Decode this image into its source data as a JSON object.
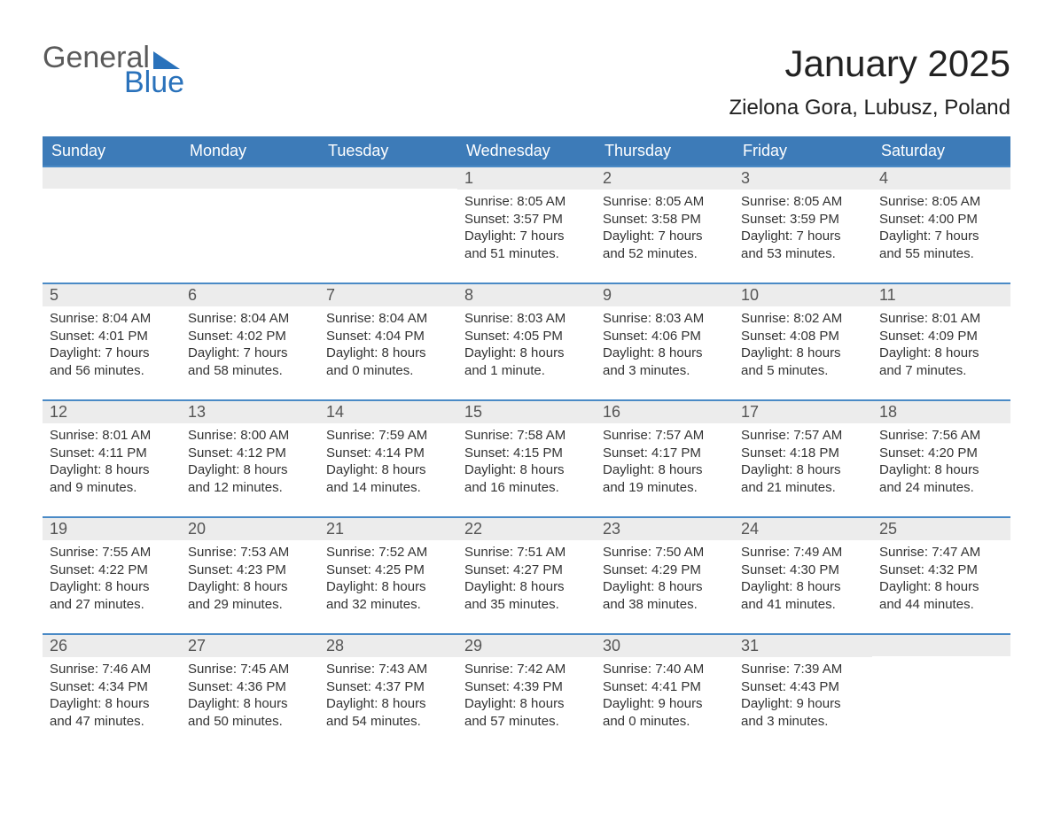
{
  "logo": {
    "line1": "General",
    "line2": "Blue"
  },
  "title": "January 2025",
  "location": "Zielona Gora, Lubusz, Poland",
  "dayHeaders": [
    "Sunday",
    "Monday",
    "Tuesday",
    "Wednesday",
    "Thursday",
    "Friday",
    "Saturday"
  ],
  "weeks": [
    [
      {
        "n": "",
        "sunrise": "",
        "sunset": "",
        "daylight": ""
      },
      {
        "n": "",
        "sunrise": "",
        "sunset": "",
        "daylight": ""
      },
      {
        "n": "",
        "sunrise": "",
        "sunset": "",
        "daylight": ""
      },
      {
        "n": "1",
        "sunrise": "Sunrise: 8:05 AM",
        "sunset": "Sunset: 3:57 PM",
        "daylight": "Daylight: 7 hours and 51 minutes."
      },
      {
        "n": "2",
        "sunrise": "Sunrise: 8:05 AM",
        "sunset": "Sunset: 3:58 PM",
        "daylight": "Daylight: 7 hours and 52 minutes."
      },
      {
        "n": "3",
        "sunrise": "Sunrise: 8:05 AM",
        "sunset": "Sunset: 3:59 PM",
        "daylight": "Daylight: 7 hours and 53 minutes."
      },
      {
        "n": "4",
        "sunrise": "Sunrise: 8:05 AM",
        "sunset": "Sunset: 4:00 PM",
        "daylight": "Daylight: 7 hours and 55 minutes."
      }
    ],
    [
      {
        "n": "5",
        "sunrise": "Sunrise: 8:04 AM",
        "sunset": "Sunset: 4:01 PM",
        "daylight": "Daylight: 7 hours and 56 minutes."
      },
      {
        "n": "6",
        "sunrise": "Sunrise: 8:04 AM",
        "sunset": "Sunset: 4:02 PM",
        "daylight": "Daylight: 7 hours and 58 minutes."
      },
      {
        "n": "7",
        "sunrise": "Sunrise: 8:04 AM",
        "sunset": "Sunset: 4:04 PM",
        "daylight": "Daylight: 8 hours and 0 minutes."
      },
      {
        "n": "8",
        "sunrise": "Sunrise: 8:03 AM",
        "sunset": "Sunset: 4:05 PM",
        "daylight": "Daylight: 8 hours and 1 minute."
      },
      {
        "n": "9",
        "sunrise": "Sunrise: 8:03 AM",
        "sunset": "Sunset: 4:06 PM",
        "daylight": "Daylight: 8 hours and 3 minutes."
      },
      {
        "n": "10",
        "sunrise": "Sunrise: 8:02 AM",
        "sunset": "Sunset: 4:08 PM",
        "daylight": "Daylight: 8 hours and 5 minutes."
      },
      {
        "n": "11",
        "sunrise": "Sunrise: 8:01 AM",
        "sunset": "Sunset: 4:09 PM",
        "daylight": "Daylight: 8 hours and 7 minutes."
      }
    ],
    [
      {
        "n": "12",
        "sunrise": "Sunrise: 8:01 AM",
        "sunset": "Sunset: 4:11 PM",
        "daylight": "Daylight: 8 hours and 9 minutes."
      },
      {
        "n": "13",
        "sunrise": "Sunrise: 8:00 AM",
        "sunset": "Sunset: 4:12 PM",
        "daylight": "Daylight: 8 hours and 12 minutes."
      },
      {
        "n": "14",
        "sunrise": "Sunrise: 7:59 AM",
        "sunset": "Sunset: 4:14 PM",
        "daylight": "Daylight: 8 hours and 14 minutes."
      },
      {
        "n": "15",
        "sunrise": "Sunrise: 7:58 AM",
        "sunset": "Sunset: 4:15 PM",
        "daylight": "Daylight: 8 hours and 16 minutes."
      },
      {
        "n": "16",
        "sunrise": "Sunrise: 7:57 AM",
        "sunset": "Sunset: 4:17 PM",
        "daylight": "Daylight: 8 hours and 19 minutes."
      },
      {
        "n": "17",
        "sunrise": "Sunrise: 7:57 AM",
        "sunset": "Sunset: 4:18 PM",
        "daylight": "Daylight: 8 hours and 21 minutes."
      },
      {
        "n": "18",
        "sunrise": "Sunrise: 7:56 AM",
        "sunset": "Sunset: 4:20 PM",
        "daylight": "Daylight: 8 hours and 24 minutes."
      }
    ],
    [
      {
        "n": "19",
        "sunrise": "Sunrise: 7:55 AM",
        "sunset": "Sunset: 4:22 PM",
        "daylight": "Daylight: 8 hours and 27 minutes."
      },
      {
        "n": "20",
        "sunrise": "Sunrise: 7:53 AM",
        "sunset": "Sunset: 4:23 PM",
        "daylight": "Daylight: 8 hours and 29 minutes."
      },
      {
        "n": "21",
        "sunrise": "Sunrise: 7:52 AM",
        "sunset": "Sunset: 4:25 PM",
        "daylight": "Daylight: 8 hours and 32 minutes."
      },
      {
        "n": "22",
        "sunrise": "Sunrise: 7:51 AM",
        "sunset": "Sunset: 4:27 PM",
        "daylight": "Daylight: 8 hours and 35 minutes."
      },
      {
        "n": "23",
        "sunrise": "Sunrise: 7:50 AM",
        "sunset": "Sunset: 4:29 PM",
        "daylight": "Daylight: 8 hours and 38 minutes."
      },
      {
        "n": "24",
        "sunrise": "Sunrise: 7:49 AM",
        "sunset": "Sunset: 4:30 PM",
        "daylight": "Daylight: 8 hours and 41 minutes."
      },
      {
        "n": "25",
        "sunrise": "Sunrise: 7:47 AM",
        "sunset": "Sunset: 4:32 PM",
        "daylight": "Daylight: 8 hours and 44 minutes."
      }
    ],
    [
      {
        "n": "26",
        "sunrise": "Sunrise: 7:46 AM",
        "sunset": "Sunset: 4:34 PM",
        "daylight": "Daylight: 8 hours and 47 minutes."
      },
      {
        "n": "27",
        "sunrise": "Sunrise: 7:45 AM",
        "sunset": "Sunset: 4:36 PM",
        "daylight": "Daylight: 8 hours and 50 minutes."
      },
      {
        "n": "28",
        "sunrise": "Sunrise: 7:43 AM",
        "sunset": "Sunset: 4:37 PM",
        "daylight": "Daylight: 8 hours and 54 minutes."
      },
      {
        "n": "29",
        "sunrise": "Sunrise: 7:42 AM",
        "sunset": "Sunset: 4:39 PM",
        "daylight": "Daylight: 8 hours and 57 minutes."
      },
      {
        "n": "30",
        "sunrise": "Sunrise: 7:40 AM",
        "sunset": "Sunset: 4:41 PM",
        "daylight": "Daylight: 9 hours and 0 minutes."
      },
      {
        "n": "31",
        "sunrise": "Sunrise: 7:39 AM",
        "sunset": "Sunset: 4:43 PM",
        "daylight": "Daylight: 9 hours and 3 minutes."
      },
      {
        "n": "",
        "sunrise": "",
        "sunset": "",
        "daylight": ""
      }
    ]
  ],
  "style": {
    "header_bg": "#3d7bb8",
    "header_text": "#ffffff",
    "daynum_bg": "#ececec",
    "border_color": "#4a8ac6",
    "text_color": "#333333",
    "page_bg": "#ffffff",
    "logo_gray": "#5a5a5a",
    "logo_blue": "#2a72bb",
    "title_fontsize": 42,
    "location_fontsize": 24,
    "header_fontsize": 18,
    "daynum_fontsize": 18,
    "body_fontsize": 15,
    "columns": 7,
    "type": "calendar-table"
  }
}
